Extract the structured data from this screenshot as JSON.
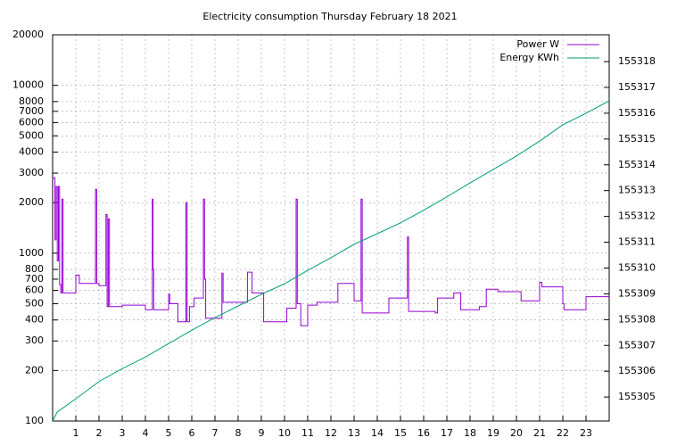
{
  "chart_data": {
    "type": "line",
    "title": "Electricity consumption Thursday February 18 2021",
    "xlim": [
      0,
      24
    ],
    "xticks": [
      1,
      2,
      3,
      4,
      5,
      6,
      7,
      8,
      9,
      10,
      11,
      12,
      13,
      14,
      15,
      16,
      17,
      18,
      19,
      20,
      21,
      22,
      23
    ],
    "ylim": [
      100,
      20000
    ],
    "log_y": true,
    "yticks": [
      100,
      200,
      300,
      400,
      500,
      600,
      700,
      800,
      1000,
      2000,
      3000,
      4000,
      5000,
      6000,
      7000,
      8000,
      10000,
      20000
    ],
    "y2lim": [
      155304.07,
      155319.04
    ],
    "y2ticks": [
      155305,
      155306,
      155307,
      155308,
      155309,
      155310,
      155311,
      155312,
      155313,
      155314,
      155315,
      155316,
      155317,
      155318
    ],
    "grid": true,
    "legend": "top-right",
    "series": [
      {
        "name": "Power W",
        "color": "#9400d3",
        "step": true,
        "x": [
          0,
          0.1,
          0.15,
          0.2,
          0.25,
          0.3,
          0.35,
          0.4,
          0.45,
          1.0,
          1.15,
          1.85,
          1.9,
          2.0,
          2.3,
          2.35,
          2.4,
          2.45,
          3.0,
          4.0,
          4.3,
          4.33,
          4.36,
          5.0,
          5.05,
          5.4,
          5.75,
          5.8,
          5.9,
          6.1,
          6.5,
          6.55,
          6.6,
          7.0,
          7.3,
          7.35,
          8.4,
          8.6,
          9.1,
          10.1,
          10.5,
          10.55,
          10.7,
          11.0,
          11.4,
          12.3,
          13.0,
          13.3,
          13.35,
          14.5,
          15.3,
          15.35,
          16.5,
          16.6,
          17.3,
          17.6,
          18.4,
          18.7,
          19.2,
          20.0,
          20.2,
          21.0,
          21.1,
          22.0,
          22.05,
          23.0,
          24
        ],
        "values": [
          2800,
          1200,
          2500,
          900,
          2500,
          650,
          580,
          2100,
          580,
          740,
          660,
          2400,
          660,
          640,
          1700,
          480,
          1600,
          480,
          490,
          460,
          2100,
          800,
          460,
          570,
          500,
          390,
          2000,
          390,
          480,
          540,
          2100,
          700,
          410,
          410,
          760,
          510,
          770,
          580,
          390,
          470,
          2100,
          500,
          370,
          490,
          510,
          660,
          520,
          2100,
          440,
          540,
          1250,
          450,
          440,
          540,
          580,
          460,
          480,
          610,
          590,
          590,
          520,
          670,
          630,
          500,
          460,
          550,
          550
        ]
      },
      {
        "name": "Energy KWh",
        "color": "#009e73",
        "axis": "y2",
        "x": [
          0,
          0.2,
          1,
          2,
          3,
          4,
          5,
          6,
          7,
          8,
          9,
          10,
          11,
          12,
          13,
          14,
          15,
          16,
          17,
          18,
          19,
          20,
          21,
          22,
          23,
          24
        ],
        "values": [
          155304.07,
          155304.42,
          155304.93,
          155305.6,
          155306.1,
          155306.55,
          155307.07,
          155307.59,
          155308.08,
          155308.53,
          155308.98,
          155309.39,
          155309.91,
          155310.4,
          155310.92,
          155311.33,
          155311.75,
          155312.24,
          155312.76,
          155313.3,
          155313.82,
          155314.34,
          155314.92,
          155315.55,
          155316,
          155316.48
        ]
      }
    ]
  }
}
